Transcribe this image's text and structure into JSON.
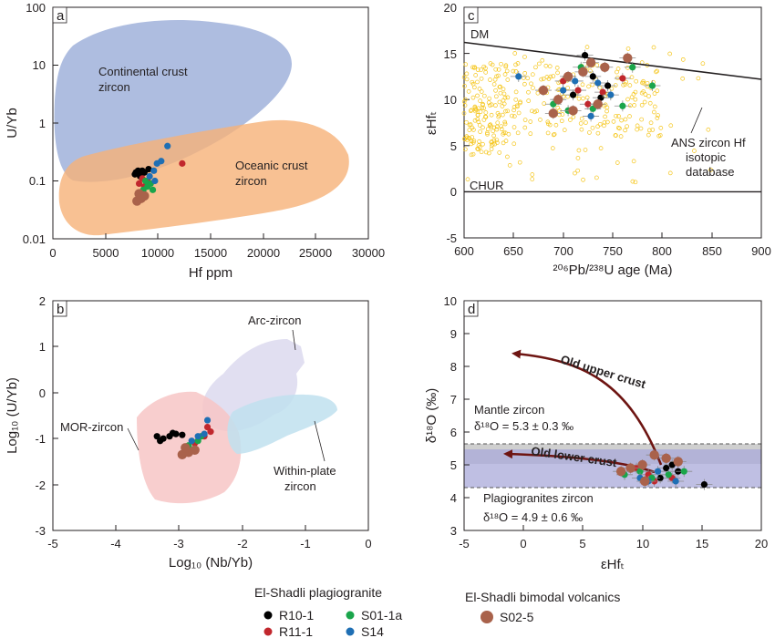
{
  "chart_data": [
    {
      "panel": "a",
      "type": "scatter",
      "xlabel": "Hf ppm",
      "ylabel": "U/Yb",
      "xlim": [
        0,
        30000
      ],
      "ylim": [
        0.01,
        100
      ],
      "yscale": "log",
      "xticks": [
        "0",
        "5000",
        "10000",
        "15000",
        "20000",
        "25000",
        "30000"
      ],
      "yticks": [
        "0.01",
        "0.1",
        "1",
        "10",
        "100"
      ],
      "fields": [
        {
          "name": "Continental crust zircon",
          "lines": [
            "Continental crust",
            "zircon"
          ],
          "color": "#9aadd8"
        },
        {
          "name": "Oceanic crust zircon",
          "lines": [
            "Oceanic crust",
            "zircon"
          ],
          "color": "#f6b178"
        }
      ],
      "series": [
        {
          "name": "R10-1",
          "color": "#000000",
          "points": [
            [
              7900,
              0.14
            ],
            [
              8100,
              0.15
            ],
            [
              8300,
              0.12
            ],
            [
              8500,
              0.15
            ],
            [
              7800,
              0.13
            ],
            [
              8700,
              0.14
            ],
            [
              9100,
              0.16
            ]
          ]
        },
        {
          "name": "R11-1",
          "color": "#c1272d",
          "points": [
            [
              8200,
              0.09
            ],
            [
              8500,
              0.11
            ],
            [
              8700,
              0.08
            ],
            [
              9000,
              0.1
            ],
            [
              12300,
              0.2
            ]
          ]
        },
        {
          "name": "S01-1a",
          "color": "#1aa54b",
          "points": [
            [
              8600,
              0.07
            ],
            [
              9000,
              0.08
            ],
            [
              9300,
              0.09
            ],
            [
              9500,
              0.07
            ],
            [
              8800,
              0.1
            ]
          ]
        },
        {
          "name": "S14",
          "color": "#1f6fb4",
          "points": [
            [
              9200,
              0.12
            ],
            [
              9600,
              0.15
            ],
            [
              9900,
              0.2
            ],
            [
              10300,
              0.22
            ],
            [
              10900,
              0.4
            ],
            [
              9700,
              0.1
            ]
          ]
        },
        {
          "name": "S02-5",
          "color": "#a9624b",
          "points": [
            [
              8000,
              0.045
            ],
            [
              8400,
              0.05
            ],
            [
              8200,
              0.06
            ],
            [
              8700,
              0.055
            ]
          ]
        }
      ]
    },
    {
      "panel": "b",
      "type": "scatter",
      "xlabel": "Log₁₀ (Nb/Yb)",
      "ylabel": "Log₁₀ (U/Yb)",
      "xlim": [
        -5,
        0
      ],
      "ylim": [
        -3,
        2
      ],
      "xticks": [
        "-5",
        "-4",
        "-3",
        "-2",
        "-1",
        "0"
      ],
      "yticks": [
        "-3",
        "-2",
        "-1",
        "0",
        "1",
        "2"
      ],
      "fields": [
        {
          "name": "Arc-zircon",
          "lines": [
            "Arc-zircon"
          ],
          "color": "#dcd9ee"
        },
        {
          "name": "MOR-zircon",
          "lines": [
            "MOR-zircon"
          ],
          "color": "#f7c6c6"
        },
        {
          "name": "Within-plate zircon",
          "lines": [
            "Within-plate",
            "zircon"
          ],
          "color": "#bfe0ef"
        }
      ],
      "series": [
        {
          "name": "R10-1",
          "color": "#000000",
          "points": [
            [
              -3.35,
              -0.95
            ],
            [
              -3.25,
              -1.0
            ],
            [
              -3.15,
              -0.95
            ],
            [
              -3.05,
              -0.9
            ],
            [
              -2.95,
              -0.92
            ],
            [
              -3.3,
              -1.05
            ],
            [
              -3.1,
              -0.88
            ]
          ]
        },
        {
          "name": "R11-1",
          "color": "#c1272d",
          "points": [
            [
              -2.9,
              -1.2
            ],
            [
              -2.75,
              -1.1
            ],
            [
              -2.6,
              -0.95
            ],
            [
              -2.5,
              -0.85
            ],
            [
              -2.55,
              -0.75
            ]
          ]
        },
        {
          "name": "S01-1a",
          "color": "#1aa54b",
          "points": [
            [
              -2.85,
              -1.15
            ],
            [
              -2.7,
              -1.05
            ],
            [
              -2.65,
              -0.95
            ]
          ]
        },
        {
          "name": "S14",
          "color": "#1f6fb4",
          "points": [
            [
              -2.8,
              -1.05
            ],
            [
              -2.7,
              -0.95
            ],
            [
              -2.6,
              -0.9
            ],
            [
              -2.55,
              -0.6
            ]
          ]
        },
        {
          "name": "S02-5",
          "color": "#a9624b",
          "points": [
            [
              -2.95,
              -1.35
            ],
            [
              -2.85,
              -1.3
            ],
            [
              -2.75,
              -1.25
            ],
            [
              -2.9,
              -1.2
            ]
          ]
        }
      ]
    },
    {
      "panel": "c",
      "type": "scatter",
      "xlabel": "²⁰⁶Pb/²³⁸U age (Ma)",
      "ylabel": "εHfₜ",
      "xlim": [
        600,
        900
      ],
      "ylim": [
        -5,
        20
      ],
      "xticks": [
        "600",
        "650",
        "700",
        "750",
        "800",
        "850",
        "900"
      ],
      "yticks": [
        "-5",
        "0",
        "5",
        "10",
        "15",
        "20"
      ],
      "lines": [
        {
          "name": "DM",
          "x": [
            600,
            900
          ],
          "y": [
            16.2,
            12.2
          ]
        },
        {
          "name": "CHUR",
          "x": [
            600,
            900
          ],
          "y": [
            0,
            0
          ]
        }
      ],
      "annotation": [
        "ANS zircon Hf",
        "isotopic",
        "database"
      ],
      "database_color": "#f5c518",
      "series": [
        {
          "name": "R10-1",
          "color": "#000000",
          "points": [
            [
              722,
              14.8
            ],
            [
              730,
              12.5
            ],
            [
              745,
              11.5
            ],
            [
              710,
              10.5
            ],
            [
              738,
              10.2
            ]
          ]
        },
        {
          "name": "R11-1",
          "color": "#c1272d",
          "points": [
            [
              700,
              12
            ],
            [
              715,
              11
            ],
            [
              725,
              9.5
            ],
            [
              740,
              10.8
            ],
            [
              760,
              12.3
            ]
          ]
        },
        {
          "name": "S01-1a",
          "color": "#1aa54b",
          "points": [
            [
              690,
              9.5
            ],
            [
              718,
              13.5
            ],
            [
              760,
              9.3
            ],
            [
              790,
              11.5
            ],
            [
              770,
              13.5
            ],
            [
              730,
              9
            ],
            [
              705,
              8.8
            ]
          ]
        },
        {
          "name": "S14",
          "color": "#1f6fb4",
          "points": [
            [
              655,
              12.5
            ],
            [
              700,
              11
            ],
            [
              712,
              12
            ],
            [
              735,
              11.8
            ],
            [
              748,
              10.5
            ],
            [
              728,
              8.2
            ]
          ]
        },
        {
          "name": "S02-5",
          "color": "#a9624b",
          "points": [
            [
              680,
              11
            ],
            [
              695,
              10
            ],
            [
              705,
              12.5
            ],
            [
              720,
              13
            ],
            [
              728,
              14
            ],
            [
              742,
              13.5
            ],
            [
              765,
              14.5
            ],
            [
              690,
              8.5
            ],
            [
              735,
              9.5
            ],
            [
              710,
              8.8
            ]
          ]
        }
      ]
    },
    {
      "panel": "d",
      "type": "scatter",
      "xlabel": "εHfₜ",
      "ylabel": "δ¹⁸O (‰)",
      "xlim": [
        -5,
        20
      ],
      "ylim": [
        3,
        10
      ],
      "xticks": [
        "-5",
        "0",
        "5",
        "10",
        "15",
        "20"
      ],
      "yticks": [
        "3",
        "4",
        "5",
        "6",
        "7",
        "8",
        "9",
        "10"
      ],
      "bands": [
        {
          "name": "Mantle zircon",
          "label": "Mantle zircon",
          "formula": "δ¹⁸O = 5.3 ± 0.3 ‰",
          "y": [
            5.0,
            5.6
          ],
          "color": "#bfbfbf"
        },
        {
          "name": "Plagiogranites zircon",
          "label": "Plagiogranites zircon",
          "formula": "δ¹⁸O = 4.9 ± 0.6 ‰",
          "y": [
            4.3,
            5.5
          ],
          "color": "#a9a9d9"
        }
      ],
      "arrows": [
        "Old upper crust",
        "Old lower crust"
      ],
      "series": [
        {
          "name": "R10-1",
          "color": "#000000",
          "points": [
            [
              12.5,
              5.0
            ],
            [
              13.0,
              4.8
            ],
            [
              15.2,
              4.4
            ],
            [
              11.5,
              4.6
            ],
            [
              12.0,
              4.9
            ]
          ]
        },
        {
          "name": "R11-1",
          "color": "#c1272d",
          "points": [
            [
              10.5,
              4.7
            ],
            [
              11.0,
              4.5
            ],
            [
              12.5,
              4.6
            ],
            [
              9.5,
              4.9
            ]
          ]
        },
        {
          "name": "S01-1a",
          "color": "#1aa54b",
          "points": [
            [
              9.8,
              4.8
            ],
            [
              10.8,
              4.6
            ],
            [
              12.2,
              4.7
            ],
            [
              13.5,
              4.8
            ],
            [
              8.5,
              4.7
            ]
          ]
        },
        {
          "name": "S14",
          "color": "#1f6fb4",
          "points": [
            [
              10.5,
              4.5
            ],
            [
              11.3,
              4.8
            ],
            [
              12.8,
              4.5
            ],
            [
              9.8,
              4.6
            ]
          ]
        },
        {
          "name": "S02-5",
          "color": "#a9624b",
          "points": [
            [
              9.0,
              4.9
            ],
            [
              10.0,
              5.0
            ],
            [
              11.0,
              5.3
            ],
            [
              12.0,
              5.2
            ],
            [
              8.2,
              4.8
            ],
            [
              13.0,
              5.1
            ],
            [
              10.2,
              4.5
            ]
          ]
        }
      ]
    }
  ],
  "legend": {
    "plagiogranite_title": "El-Shadli plagiogranite",
    "volcanics_title": "El-Shadli bimodal volcanics",
    "items": [
      {
        "name": "R10-1",
        "color": "#000000"
      },
      {
        "name": "S01-1a",
        "color": "#1aa54b"
      },
      {
        "name": "R11-1",
        "color": "#c1272d"
      },
      {
        "name": "S14",
        "color": "#1f6fb4"
      },
      {
        "name": "S02-5",
        "color": "#a9624b"
      }
    ]
  }
}
